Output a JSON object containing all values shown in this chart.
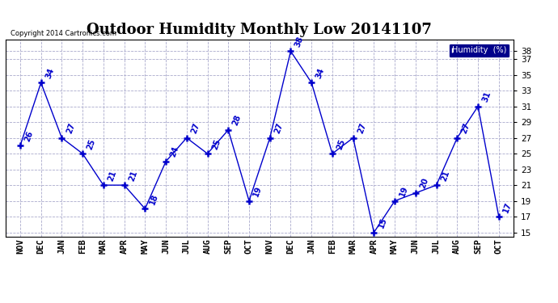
{
  "title": "Outdoor Humidity Monthly Low 20141107",
  "copyright": "Copyright 2014 Cartronics.com",
  "legend_label": "Humidity  (%)",
  "x_labels": [
    "NOV",
    "DEC",
    "JAN",
    "FEB",
    "MAR",
    "APR",
    "MAY",
    "JUN",
    "JUL",
    "AUG",
    "SEP",
    "OCT",
    "NOV",
    "DEC",
    "JAN",
    "FEB",
    "MAR",
    "APR",
    "MAY",
    "JUN",
    "JUL",
    "AUG",
    "SEP",
    "OCT"
  ],
  "values": [
    26,
    34,
    27,
    25,
    21,
    21,
    18,
    24,
    27,
    25,
    28,
    19,
    27,
    38,
    34,
    25,
    27,
    15,
    19,
    20,
    21,
    27,
    31,
    17
  ],
  "line_color": "#0000cc",
  "marker": "+",
  "ylim": [
    14.5,
    39.5
  ],
  "yticks": [
    15,
    17,
    19,
    21,
    23,
    25,
    27,
    29,
    31,
    33,
    35,
    37,
    38
  ],
  "background_color": "#ffffff",
  "plot_bg": "#ffffff",
  "legend_bg": "#00008b",
  "legend_text_color": "#ffffff",
  "title_fontsize": 13,
  "label_fontsize": 7.5,
  "value_label_fontsize": 7,
  "grid_color": "#aaaacc",
  "grid_linestyle": "--",
  "grid_linewidth": 0.6
}
